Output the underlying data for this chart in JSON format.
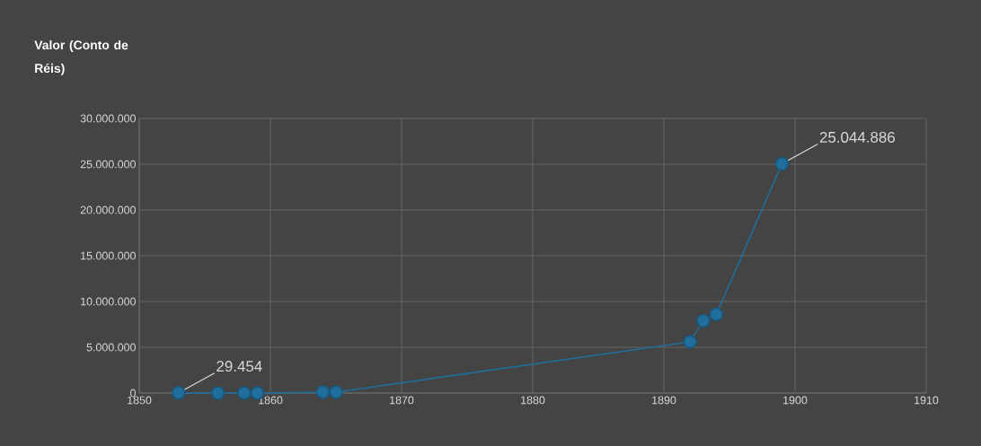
{
  "chart_data": {
    "type": "line",
    "ylabel": "Valor (Conto de Réis)",
    "x": [
      1853,
      1856,
      1858,
      1859,
      1864,
      1865,
      1892,
      1893,
      1894,
      1899
    ],
    "values": [
      29454,
      0,
      0,
      0,
      100000,
      100000,
      5600000,
      7900000,
      8600000,
      25044886
    ],
    "color": "#1f6e9c",
    "marker": "circle",
    "line_style": "solid",
    "grid": true,
    "xlim": [
      1850,
      1910
    ],
    "xticks": [
      1850,
      1860,
      1870,
      1880,
      1890,
      1900,
      1910
    ],
    "ylim": [
      0,
      30000000
    ],
    "yticks": [
      {
        "value": 0,
        "label": "0"
      },
      {
        "value": 5000000,
        "label": "5.000.000"
      },
      {
        "value": 10000000,
        "label": "10.000.000"
      },
      {
        "value": 15000000,
        "label": "15.000.000"
      },
      {
        "value": 20000000,
        "label": "20.000.000"
      },
      {
        "value": 25000000,
        "label": "25.000.000"
      },
      {
        "value": 30000000,
        "label": "30.000.000"
      }
    ],
    "annotations": [
      {
        "text": "29.454",
        "x": 1853,
        "y": 29454
      },
      {
        "text": "25.044.886",
        "x": 1899,
        "y": 25044886
      }
    ]
  }
}
